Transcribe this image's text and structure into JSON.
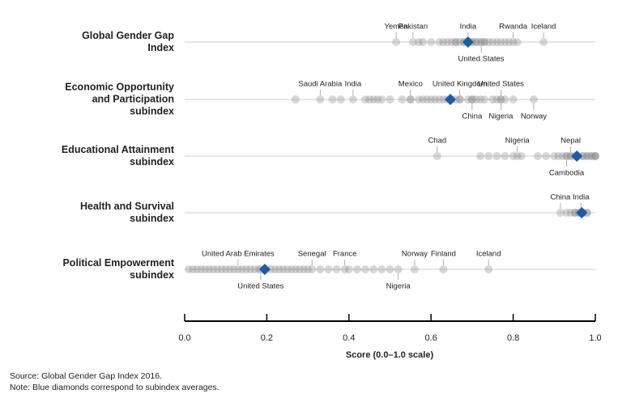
{
  "chart_data": {
    "type": "strip",
    "xlabel": "Score (0.0–1.0 scale)",
    "xlim": [
      0,
      1
    ],
    "xticks": [
      {
        "value": 0,
        "label": "0.0"
      },
      0.2,
      0.4,
      0.6,
      0.8,
      {
        "value": 1,
        "label": "1.0"
      }
    ],
    "dot_color": "#8c8c8c",
    "average_color": "#1f5aa6",
    "rows": [
      {
        "label": [
          "Global Gender Gap",
          "Index"
        ],
        "average": 0.69,
        "labeled": [
          {
            "label": "Yemen",
            "value": 0.515,
            "position": "above"
          },
          {
            "label": "Pakistan",
            "value": 0.556,
            "position": "above"
          },
          {
            "label": "India",
            "value": 0.69,
            "position": "above"
          },
          {
            "label": "Rwanda",
            "value": 0.8,
            "position": "above"
          },
          {
            "label": "Iceland",
            "value": 0.874,
            "position": "above"
          },
          {
            "label": "United States",
            "value": 0.722,
            "position": "below"
          }
        ],
        "values": [
          0.57,
          0.58,
          0.6,
          0.62,
          0.63,
          0.64,
          0.65,
          0.66,
          0.66,
          0.67,
          0.68,
          0.68,
          0.69,
          0.69,
          0.7,
          0.7,
          0.71,
          0.71,
          0.72,
          0.73,
          0.73,
          0.74,
          0.75,
          0.76,
          0.77,
          0.78,
          0.79,
          0.81
        ]
      },
      {
        "label": [
          "Economic Opportunity",
          "and Participation",
          "subindex"
        ],
        "average": 0.647,
        "labeled": [
          {
            "label": "Saudi Arabia",
            "value": 0.33,
            "position": "above"
          },
          {
            "label": "India",
            "value": 0.41,
            "position": "above"
          },
          {
            "label": "Mexico",
            "value": 0.55,
            "position": "above"
          },
          {
            "label": "United Kingdom",
            "value": 0.67,
            "position": "above"
          },
          {
            "label": "United States",
            "value": 0.77,
            "position": "above"
          },
          {
            "label": "China",
            "value": 0.7,
            "position": "below"
          },
          {
            "label": "Nigeria",
            "value": 0.77,
            "position": "below"
          },
          {
            "label": "Norway",
            "value": 0.85,
            "position": "below"
          }
        ],
        "values": [
          0.27,
          0.36,
          0.38,
          0.44,
          0.45,
          0.46,
          0.47,
          0.48,
          0.5,
          0.53,
          0.55,
          0.57,
          0.58,
          0.59,
          0.6,
          0.61,
          0.62,
          0.63,
          0.64,
          0.65,
          0.66,
          0.67,
          0.69,
          0.7,
          0.71,
          0.72,
          0.73,
          0.75,
          0.76,
          0.78,
          0.8
        ]
      },
      {
        "label": [
          "Educational Attainment",
          "subindex"
        ],
        "average": 0.955,
        "labeled": [
          {
            "label": "Chad",
            "value": 0.615,
            "position": "above"
          },
          {
            "label": "Nigeria",
            "value": 0.81,
            "position": "above"
          },
          {
            "label": "Nepal",
            "value": 0.94,
            "position": "above"
          },
          {
            "label": "Cambodia",
            "value": 0.93,
            "position": "below"
          }
        ],
        "values": [
          0.72,
          0.74,
          0.76,
          0.78,
          0.8,
          0.82,
          0.86,
          0.88,
          0.9,
          0.91,
          0.92,
          0.93,
          0.94,
          0.95,
          0.96,
          0.97,
          0.97,
          0.98,
          0.98,
          0.99,
          0.99,
          1.0,
          1.0,
          1.0
        ]
      },
      {
        "label": [
          "Health and Survival",
          "subindex"
        ],
        "average": 0.967,
        "labeled": [
          {
            "label": "China",
            "value": 0.915,
            "position": "above"
          },
          {
            "label": "India",
            "value": 0.965,
            "position": "above"
          }
        ],
        "values": [
          0.93,
          0.94,
          0.95,
          0.95,
          0.96,
          0.96,
          0.97,
          0.97,
          0.97,
          0.98,
          0.98
        ]
      },
      {
        "label": [
          "Political Empowerment",
          "subindex"
        ],
        "average": 0.195,
        "labeled": [
          {
            "label": "United Arab Emirates",
            "value": 0.13,
            "position": "above"
          },
          {
            "label": "Senegal",
            "value": 0.31,
            "position": "above"
          },
          {
            "label": "France",
            "value": 0.39,
            "position": "above"
          },
          {
            "label": "Norway",
            "value": 0.56,
            "position": "above"
          },
          {
            "label": "Finland",
            "value": 0.63,
            "position": "above"
          },
          {
            "label": "Iceland",
            "value": 0.74,
            "position": "above"
          },
          {
            "label": "United States",
            "value": 0.185,
            "position": "below"
          },
          {
            "label": "Nigeria",
            "value": 0.52,
            "position": "below"
          }
        ],
        "values": [
          0.01,
          0.02,
          0.03,
          0.04,
          0.05,
          0.06,
          0.07,
          0.08,
          0.09,
          0.1,
          0.11,
          0.12,
          0.14,
          0.15,
          0.16,
          0.17,
          0.18,
          0.2,
          0.21,
          0.22,
          0.23,
          0.24,
          0.25,
          0.26,
          0.27,
          0.28,
          0.29,
          0.3,
          0.33,
          0.35,
          0.37,
          0.4,
          0.42,
          0.44,
          0.46,
          0.48,
          0.5
        ]
      }
    ],
    "source": "Source: Global Gender Gap Index 2016.",
    "note": "Note: Blue diamonds correspond to subindex averages."
  }
}
